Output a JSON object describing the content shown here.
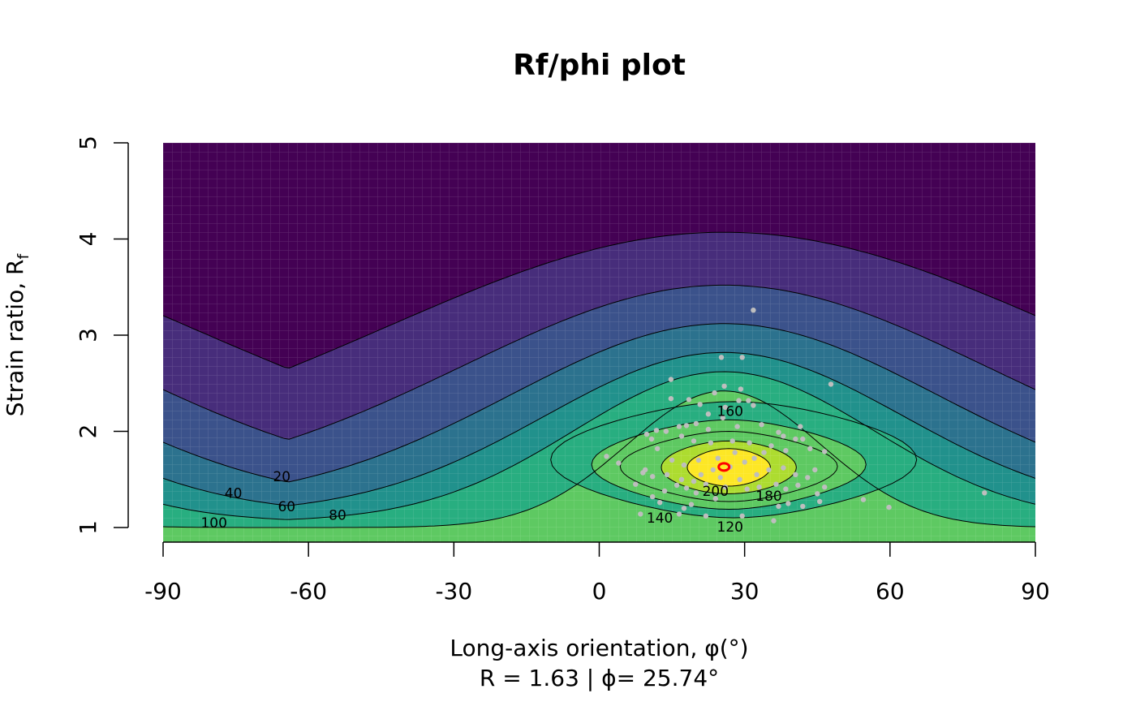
{
  "chart_data": {
    "type": "heatmap",
    "title": "Rf/phi plot",
    "xlabel_text": "Long-axis orientation, ",
    "xlabel_symbol": "φ(°)",
    "ylabel_text": "Strain ratio, R",
    "ylabel_sub": "f",
    "subtitle": "R = 1.63 | ϕ= 25.74°",
    "xlim": [
      -90,
      90
    ],
    "ylim": [
      1,
      5
    ],
    "xticks": [
      "-90",
      "-60",
      "-30",
      "0",
      "30",
      "60",
      "90"
    ],
    "yticks": [
      "1",
      "2",
      "3",
      "4",
      "5"
    ],
    "grid": false,
    "mean": {
      "phi": 25.74,
      "R": 1.63,
      "color": "#ff0000"
    },
    "point_color": "#bebebe",
    "colorscale": [
      "#440154",
      "#472d7b",
      "#3b528b",
      "#2c728e",
      "#21918c",
      "#28ae80",
      "#5ec962",
      "#addc30",
      "#fde725"
    ],
    "contour_labels": [
      {
        "text": "20",
        "x": -65.5,
        "R": 1.53
      },
      {
        "text": "40",
        "x": -75.5,
        "R": 1.36
      },
      {
        "text": "60",
        "x": -64.5,
        "R": 1.22
      },
      {
        "text": "80",
        "x": -54.0,
        "R": 1.13
      },
      {
        "text": "100",
        "x": -79.5,
        "R": 1.05
      },
      {
        "text": "120",
        "x": 27.0,
        "R": 1.01
      },
      {
        "text": "140",
        "x": 12.5,
        "R": 1.1
      },
      {
        "text": "160",
        "x": 27.0,
        "R": 2.21
      },
      {
        "text": "180",
        "x": 35.0,
        "R": 1.33
      },
      {
        "text": "200",
        "x": 24.0,
        "R": 1.38
      }
    ],
    "points": [
      [
        31.8,
        3.26
      ],
      [
        25.2,
        2.77
      ],
      [
        29.5,
        2.77
      ],
      [
        47.8,
        2.49
      ],
      [
        14.8,
        2.54
      ],
      [
        25.8,
        2.47
      ],
      [
        29.2,
        2.44
      ],
      [
        23.8,
        2.4
      ],
      [
        14.8,
        2.34
      ],
      [
        18.5,
        2.33
      ],
      [
        20.8,
        2.28
      ],
      [
        26.0,
        2.25
      ],
      [
        30.8,
        2.32
      ],
      [
        31.8,
        2.27
      ],
      [
        28.8,
        2.32
      ],
      [
        22.5,
        2.18
      ],
      [
        25.5,
        2.14
      ],
      [
        20.0,
        2.08
      ],
      [
        16.5,
        2.05
      ],
      [
        18.0,
        2.06
      ],
      [
        28.5,
        2.05
      ],
      [
        33.5,
        2.07
      ],
      [
        22.5,
        2.02
      ],
      [
        11.8,
        2.01
      ],
      [
        13.8,
        2.0
      ],
      [
        37.0,
        1.99
      ],
      [
        41.5,
        2.05
      ],
      [
        38.0,
        1.95
      ],
      [
        40.5,
        1.92
      ],
      [
        42.0,
        1.92
      ],
      [
        9.8,
        1.97
      ],
      [
        10.8,
        1.92
      ],
      [
        12.0,
        1.82
      ],
      [
        17.0,
        1.95
      ],
      [
        19.5,
        1.9
      ],
      [
        23.0,
        1.88
      ],
      [
        27.5,
        1.9
      ],
      [
        31.0,
        1.88
      ],
      [
        35.5,
        1.85
      ],
      [
        38.5,
        1.8
      ],
      [
        43.5,
        1.82
      ],
      [
        46.5,
        1.79
      ],
      [
        1.5,
        1.74
      ],
      [
        4.0,
        1.67
      ],
      [
        9.5,
        1.6
      ],
      [
        9.0,
        1.57
      ],
      [
        11.0,
        1.53
      ],
      [
        14.0,
        1.55
      ],
      [
        17.0,
        1.5
      ],
      [
        19.5,
        1.48
      ],
      [
        22.0,
        1.45
      ],
      [
        25.0,
        1.52
      ],
      [
        29.0,
        1.5
      ],
      [
        32.5,
        1.55
      ],
      [
        35.0,
        1.6
      ],
      [
        38.0,
        1.62
      ],
      [
        40.5,
        1.55
      ],
      [
        43.0,
        1.52
      ],
      [
        44.5,
        1.6
      ],
      [
        46.5,
        1.42
      ],
      [
        45.0,
        1.35
      ],
      [
        45.5,
        1.27
      ],
      [
        42.0,
        1.22
      ],
      [
        39.0,
        1.25
      ],
      [
        37.0,
        1.22
      ],
      [
        36.0,
        1.07
      ],
      [
        29.5,
        1.12
      ],
      [
        22.0,
        1.12
      ],
      [
        19.0,
        1.24
      ],
      [
        17.5,
        1.2
      ],
      [
        16.5,
        1.14
      ],
      [
        12.5,
        1.26
      ],
      [
        11.0,
        1.32
      ],
      [
        8.5,
        1.14
      ],
      [
        7.5,
        1.45
      ],
      [
        54.5,
        1.29
      ],
      [
        59.8,
        1.21
      ],
      [
        79.5,
        1.36
      ],
      [
        13.5,
        1.38
      ],
      [
        18.0,
        1.41
      ],
      [
        21.0,
        1.55
      ],
      [
        23.5,
        1.6
      ],
      [
        27.0,
        1.63
      ],
      [
        30.0,
        1.68
      ],
      [
        24.5,
        1.72
      ],
      [
        20.5,
        1.7
      ],
      [
        17.5,
        1.65
      ],
      [
        15.0,
        1.7
      ],
      [
        28.0,
        1.78
      ],
      [
        32.0,
        1.72
      ],
      [
        34.0,
        1.78
      ],
      [
        26.0,
        1.42
      ],
      [
        30.5,
        1.4
      ],
      [
        33.0,
        1.42
      ],
      [
        24.0,
        1.3
      ],
      [
        20.0,
        1.36
      ],
      [
        16.0,
        1.44
      ],
      [
        36.5,
        1.45
      ],
      [
        38.5,
        1.4
      ],
      [
        41.0,
        1.44
      ]
    ]
  }
}
